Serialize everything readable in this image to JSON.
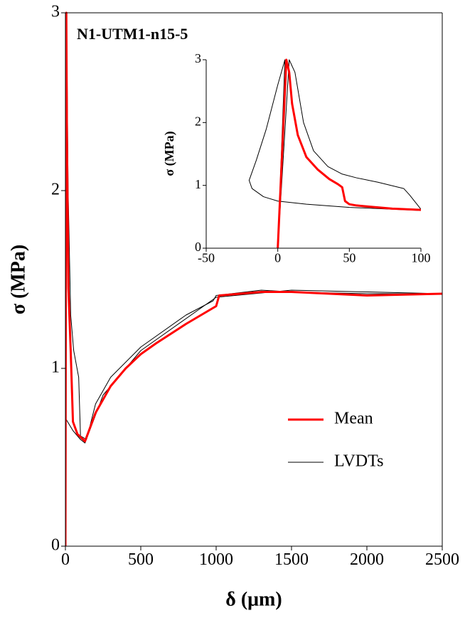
{
  "chart_data": [
    {
      "type": "line",
      "title": "N1-UTM1-n15-5",
      "x_label": "δ (μm)",
      "y_label": "σ (MPa)",
      "xlim": [
        0,
        2500
      ],
      "ylim": [
        0,
        3
      ],
      "xticks": [
        0,
        500,
        1000,
        1500,
        2000,
        2500
      ],
      "yticks": [
        0,
        1,
        2,
        3
      ],
      "legend": "lower right",
      "series": [
        {
          "name": "Mean",
          "color": "#ff0000",
          "x": [
            0,
            6,
            10,
            20,
            35,
            50,
            80,
            130,
            200,
            300,
            400,
            500,
            600,
            800,
            1000,
            1020,
            1300,
            1500,
            2000,
            2500
          ],
          "values": [
            0,
            3,
            2.3,
            1.45,
            1.1,
            0.7,
            0.63,
            0.59,
            0.75,
            0.9,
            1.0,
            1.08,
            1.14,
            1.25,
            1.35,
            1.41,
            1.43,
            1.43,
            1.41,
            1.42
          ]
        },
        {
          "name": "LVDTs",
          "color": "#000000",
          "lines": [
            {
              "x": [
                0,
                8,
                18,
                35,
                55,
                88,
                100,
                140,
                200,
                300,
                500,
                800,
                980,
                1000,
                1300,
                1500,
                2000,
                2500
              ],
              "values": [
                0,
                3,
                2.0,
                1.3,
                1.1,
                0.95,
                0.62,
                0.6,
                0.8,
                0.95,
                1.12,
                1.3,
                1.38,
                1.41,
                1.44,
                1.43,
                1.42,
                1.42
              ]
            },
            {
              "x": [
                0,
                5,
                -20,
                0,
                50,
                100,
                130,
                250,
                500,
                1000,
                1500,
                2500
              ],
              "values": [
                0,
                3,
                1.08,
                0.72,
                0.65,
                0.6,
                0.58,
                0.85,
                1.1,
                1.4,
                1.44,
                1.42
              ]
            }
          ]
        }
      ]
    },
    {
      "type": "line",
      "y_label": "σ (MPa)",
      "xlim": [
        -50,
        100
      ],
      "ylim": [
        0,
        3
      ],
      "xticks": [
        -50,
        0,
        50,
        100
      ],
      "yticks": [
        0,
        1,
        2,
        3
      ],
      "series": [
        {
          "color": "#ff0000",
          "x": [
            0,
            6,
            8,
            10,
            14,
            20,
            28,
            36,
            42,
            45,
            47,
            50,
            55,
            60,
            80,
            100
          ],
          "values": [
            0,
            3,
            2.8,
            2.3,
            1.8,
            1.45,
            1.25,
            1.1,
            1.02,
            0.97,
            0.75,
            0.7,
            0.68,
            0.67,
            0.63,
            0.61
          ]
        },
        {
          "color": "#000000",
          "x": [
            0,
            8,
            12,
            18,
            25,
            35,
            45,
            55,
            70,
            88,
            92,
            100
          ],
          "values": [
            0,
            3,
            2.8,
            2.0,
            1.55,
            1.3,
            1.18,
            1.12,
            1.05,
            0.95,
            0.85,
            0.62
          ]
        },
        {
          "color": "#000000",
          "x": [
            0,
            5,
            0,
            -8,
            -15,
            -20,
            -18,
            -10,
            0,
            20,
            50,
            100
          ],
          "values": [
            0,
            3,
            2.6,
            1.9,
            1.4,
            1.08,
            0.95,
            0.82,
            0.75,
            0.7,
            0.65,
            0.6
          ]
        }
      ]
    }
  ]
}
